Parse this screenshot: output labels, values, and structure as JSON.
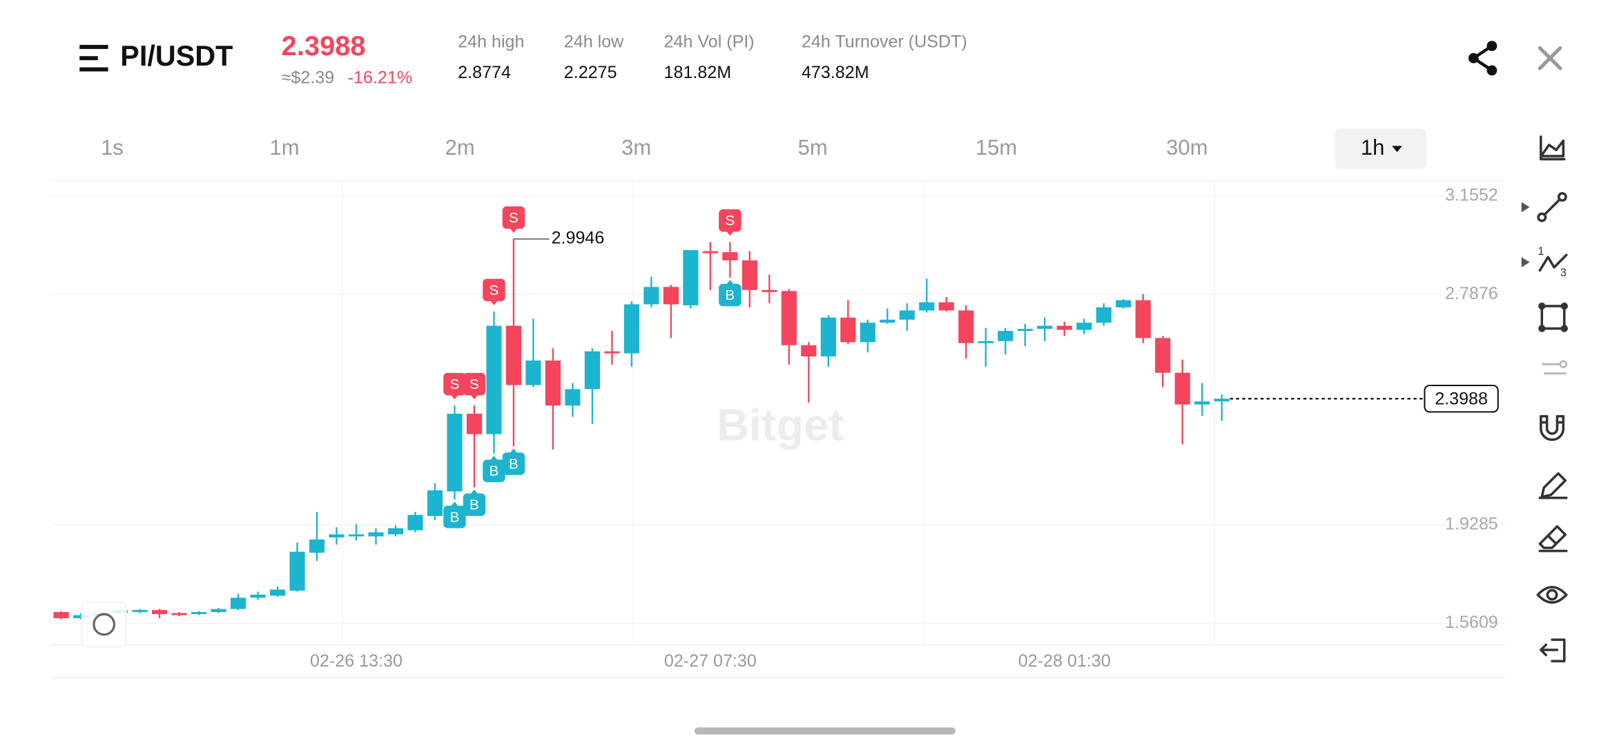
{
  "header": {
    "pair": "PI/USDT",
    "price": "2.3988",
    "usd_price": "≈$2.39",
    "change": "-16.21%",
    "stats": [
      {
        "label": "24h high",
        "value": "2.8774"
      },
      {
        "label": "24h low",
        "value": "2.2275"
      },
      {
        "label": "24h Vol (PI)",
        "value": "181.82M"
      },
      {
        "label": "24h Turnover (USDT)",
        "value": "473.82M"
      }
    ]
  },
  "intervals": {
    "options": [
      "1s",
      "1m",
      "2m",
      "3m",
      "5m",
      "15m",
      "30m",
      "1h"
    ],
    "selected": 7
  },
  "chart_data": {
    "type": "candlestick",
    "watermark": "Bitget",
    "categories": [
      null,
      null,
      null,
      null,
      null,
      null,
      null,
      null,
      null,
      null,
      null,
      null,
      null,
      null,
      null,
      "02-26 13:30",
      null,
      null,
      null,
      null,
      null,
      null,
      null,
      null,
      null,
      null,
      null,
      null,
      null,
      null,
      null,
      null,
      null,
      "02-27 07:30",
      null,
      null,
      null,
      null,
      null,
      null,
      null,
      null,
      null,
      null,
      null,
      null,
      null,
      null,
      null,
      null,
      null,
      "02-28 01:30",
      null,
      null,
      null,
      null,
      null,
      null,
      null,
      null
    ],
    "open": [
      1.6029,
      1.58,
      1.5876,
      1.5991,
      1.6029,
      1.6105,
      1.5991,
      1.5953,
      1.6029,
      1.6143,
      1.6563,
      1.6639,
      1.683,
      1.8241,
      1.8813,
      1.8889,
      1.8851,
      1.8928,
      1.908,
      1.9615,
      2.053,
      2.3428,
      2.2666,
      2.6709,
      2.4496,
      2.5412,
      2.3733,
      2.4344,
      2.5755,
      2.5679,
      2.7509,
      2.8157,
      2.7471,
      2.9491,
      2.9453,
      2.9149,
      2.8043,
      2.8005,
      2.5984,
      2.5564,
      2.7013,
      2.6098,
      2.6823,
      2.6937,
      2.728,
      2.7585,
      2.728,
      2.606,
      2.6136,
      2.6517,
      2.6594,
      2.6708,
      2.6556,
      2.6823,
      2.7395,
      2.7662,
      2.6251,
      2.4954,
      2.3771,
      2.3886
    ],
    "high": [
      1.6067,
      1.5991,
      1.6067,
      1.6143,
      1.6143,
      1.6143,
      1.6029,
      1.6067,
      1.6181,
      1.6715,
      1.6792,
      1.6983,
      1.863,
      1.9767,
      1.9195,
      1.9309,
      1.9157,
      1.9271,
      1.9767,
      2.0835,
      2.3733,
      2.3733,
      2.7242,
      2.9946,
      2.6976,
      2.587,
      2.4573,
      2.587,
      2.6518,
      2.7623,
      2.8539,
      2.8234,
      2.953,
      2.9835,
      2.9835,
      2.9491,
      2.8615,
      2.8081,
      2.6098,
      2.709,
      2.7662,
      2.6937,
      2.7357,
      2.7547,
      2.8463,
      2.7776,
      2.7471,
      2.6632,
      2.6632,
      2.6784,
      2.7013,
      2.6861,
      2.6975,
      2.7547,
      2.77,
      2.7891,
      2.6327,
      2.545,
      2.4572,
      2.4153
    ],
    "low": [
      1.5762,
      1.5762,
      1.5838,
      1.5953,
      1.5991,
      1.58,
      1.5876,
      1.5914,
      1.5991,
      1.6105,
      1.6487,
      1.6601,
      1.6792,
      1.7936,
      1.8546,
      1.8699,
      1.8546,
      1.8851,
      1.9004,
      1.9462,
      2.0224,
      2.0682,
      2.1941,
      2.2208,
      2.442,
      2.2094,
      2.3314,
      2.3047,
      2.5259,
      2.5183,
      2.7395,
      2.6251,
      2.7357,
      2.8043,
      2.8501,
      2.7395,
      2.7547,
      2.5259,
      2.3848,
      2.5183,
      2.6022,
      2.5717,
      2.6784,
      2.6517,
      2.7204,
      2.7242,
      2.5488,
      2.5183,
      2.564,
      2.5945,
      2.6136,
      2.6327,
      2.6403,
      2.6708,
      2.7357,
      2.606,
      2.442,
      2.2284,
      2.3352,
      2.3161
    ],
    "close": [
      1.58,
      1.5914,
      1.5991,
      1.6105,
      1.6105,
      1.5953,
      1.5914,
      1.6029,
      1.6143,
      1.6563,
      1.6677,
      1.6868,
      1.8279,
      1.8737,
      1.8928,
      1.8928,
      1.9004,
      1.9157,
      1.9653,
      2.0568,
      2.3428,
      2.2666,
      2.6709,
      2.4496,
      2.5412,
      2.3733,
      2.4344,
      2.5755,
      2.5679,
      2.7509,
      2.8157,
      2.7509,
      2.953,
      2.9453,
      2.9149,
      2.8043,
      2.8005,
      2.5984,
      2.5564,
      2.7013,
      2.6098,
      2.6823,
      2.6937,
      2.728,
      2.7585,
      2.728,
      2.606,
      2.6136,
      2.6517,
      2.6594,
      2.6708,
      2.6556,
      2.6823,
      2.7395,
      2.7662,
      2.6251,
      2.4954,
      2.3771,
      2.3886,
      2.3988
    ],
    "colors": {
      "up": "#1cb4cf",
      "down": "#f4455c"
    },
    "ylim": [
      1.4808,
      3.2124
    ],
    "yticks": [
      3.1552,
      2.7876,
      1.9285,
      1.5609
    ],
    "last_price": 2.3988,
    "max_label": "2.9946",
    "signals": [
      {
        "candle": 20,
        "label": "S"
      },
      {
        "candle": 21,
        "label": "S"
      },
      {
        "candle": 22,
        "label": "S"
      },
      {
        "candle": 23,
        "label": "S"
      },
      {
        "candle": 34,
        "label": "S"
      },
      {
        "candle": 20,
        "label": "B"
      },
      {
        "candle": 21,
        "label": "B"
      },
      {
        "candle": 22,
        "label": "B"
      },
      {
        "candle": 23,
        "label": "B"
      },
      {
        "candle": 34,
        "label": "B"
      }
    ]
  }
}
